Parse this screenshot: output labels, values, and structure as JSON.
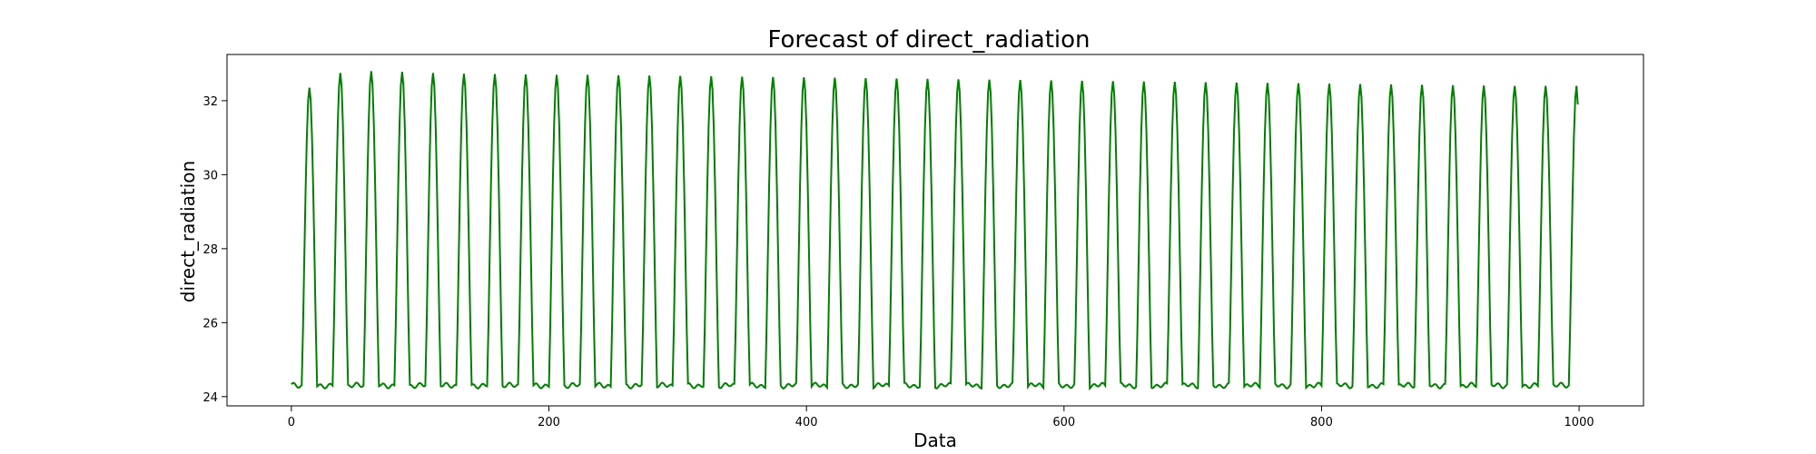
{
  "chart_data": {
    "type": "line",
    "title": "Forecast of direct_radiation",
    "xlabel": "Data",
    "ylabel": "direct_radiation",
    "xlim": [
      -50,
      1050
    ],
    "ylim": [
      23.75,
      33.25
    ],
    "xticks": [
      0,
      200,
      400,
      600,
      800,
      1000
    ],
    "yticks": [
      24,
      26,
      28,
      30,
      32
    ],
    "grid": false,
    "color": "#008000",
    "series": [
      {
        "x_start": 0,
        "x_end": 999,
        "period": 24,
        "first_peak_x": 14,
        "baseline": 24.3,
        "peak_values": [
          32.35,
          32.75,
          32.8,
          32.78,
          32.75,
          32.73,
          32.72,
          32.71,
          32.7,
          32.7,
          32.69,
          32.68,
          32.67,
          32.66,
          32.65,
          32.64,
          32.63,
          32.62,
          32.61,
          32.6,
          32.59,
          32.58,
          32.57,
          32.56,
          32.55,
          32.54,
          32.53,
          32.52,
          32.51,
          32.5,
          32.49,
          32.48,
          32.47,
          32.46,
          32.45,
          32.44,
          32.43,
          32.42,
          32.41,
          32.4,
          32.4,
          32.4
        ],
        "end_value": 31.9
      }
    ]
  }
}
